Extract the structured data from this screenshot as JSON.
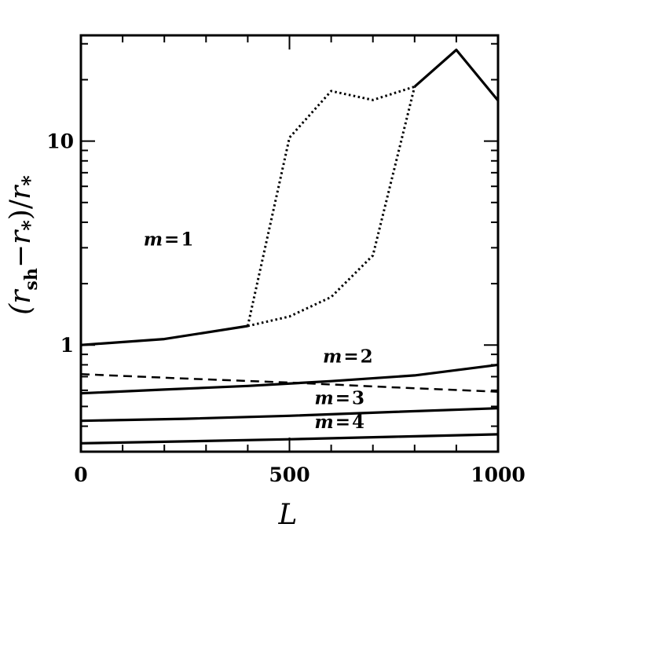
{
  "chart_data": {
    "type": "line",
    "xlabel": "L",
    "ylabel": {
      "open": "(",
      "r1": "r",
      "sub1": "sh",
      "minus": "−",
      "r2": "r",
      "sub2": "*",
      "close": ")/",
      "r3": "r",
      "sub3": "*"
    },
    "xlim": [
      0,
      1000
    ],
    "ylim": [
      0.3,
      33
    ],
    "yscale": "log",
    "xticks": [
      {
        "value": 0,
        "label": "0"
      },
      {
        "value": 500,
        "label": "500"
      },
      {
        "value": 1000,
        "label": "1000"
      }
    ],
    "yticks": [
      {
        "value": 1,
        "label": "1"
      },
      {
        "value": 10,
        "label": "10"
      }
    ],
    "annotations": [
      {
        "text": "m = 1",
        "m": "m",
        "eq": "=",
        "n": "1",
        "x": 210,
        "y": 3.3
      },
      {
        "text": "m = 2",
        "m": "m",
        "eq": "=",
        "n": "2",
        "x": 640,
        "y": 0.88
      },
      {
        "text": "m = 3",
        "m": "m",
        "eq": "=",
        "n": "3",
        "x": 620,
        "y": 0.55
      },
      {
        "text": "m = 4",
        "m": "m",
        "eq": "=",
        "n": "4",
        "x": 620,
        "y": 0.42
      }
    ],
    "series": [
      {
        "style": "solid",
        "color": "#000000",
        "x": [
          0,
          200,
          400
        ],
        "y": [
          1.0,
          1.07,
          1.24
        ]
      },
      {
        "style": "dotted",
        "color": "#000000",
        "x": [
          400,
          500,
          600,
          700,
          800
        ],
        "y": [
          1.24,
          1.38,
          1.72,
          2.75,
          18.5
        ]
      },
      {
        "style": "dotted",
        "color": "#000000",
        "x": [
          400,
          500,
          600,
          700,
          800
        ],
        "y": [
          1.24,
          10.4,
          17.6,
          15.9,
          18.5
        ]
      },
      {
        "style": "solid",
        "color": "#000000",
        "x": [
          800,
          900,
          1000
        ],
        "y": [
          18.5,
          28.0,
          15.8
        ]
      },
      {
        "style": "solid",
        "color": "#000000",
        "x": [
          0,
          200,
          400,
          600,
          800,
          1000
        ],
        "y": [
          0.58,
          0.605,
          0.63,
          0.665,
          0.71,
          0.8
        ]
      },
      {
        "style": "dashed",
        "color": "#000000",
        "x": [
          0,
          250,
          500,
          750,
          1000
        ],
        "y": [
          0.72,
          0.685,
          0.655,
          0.62,
          0.59
        ]
      },
      {
        "style": "solid",
        "color": "#000000",
        "x": [
          0,
          250,
          500,
          750,
          1000
        ],
        "y": [
          0.425,
          0.435,
          0.45,
          0.47,
          0.49
        ]
      },
      {
        "style": "solid",
        "color": "#000000",
        "x": [
          0,
          250,
          500,
          750,
          1000
        ],
        "y": [
          0.33,
          0.337,
          0.345,
          0.355,
          0.365
        ]
      }
    ],
    "grid": false
  }
}
